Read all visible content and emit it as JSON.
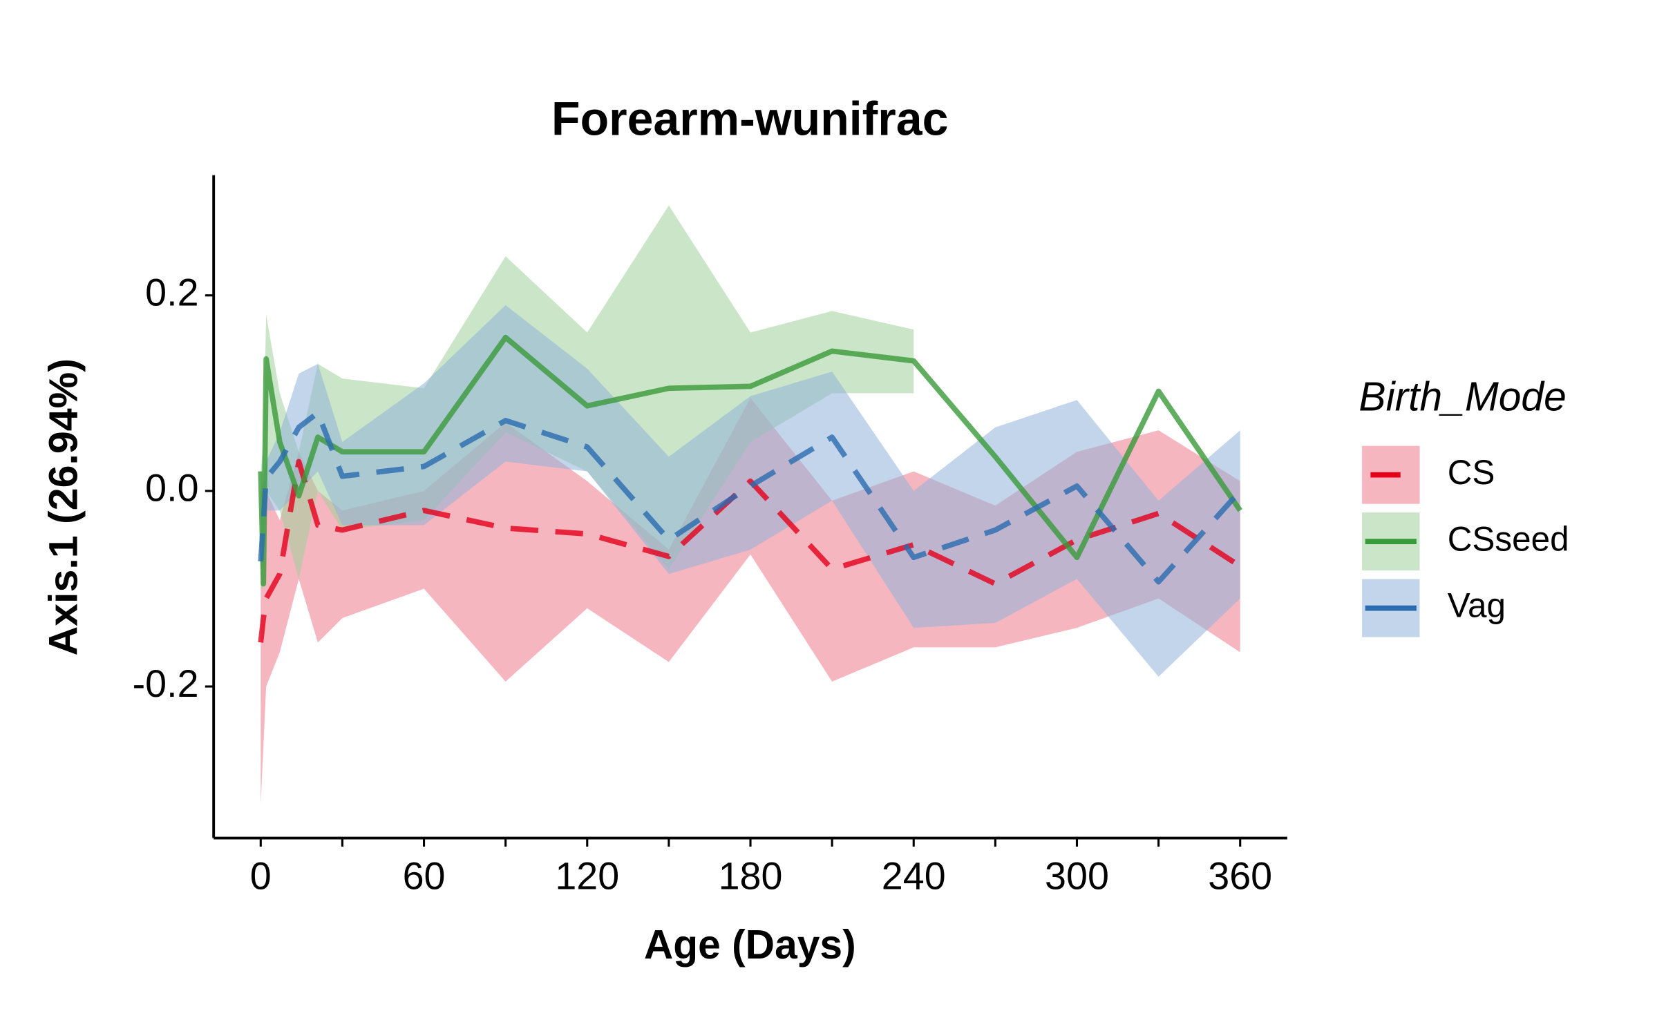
{
  "chart_data": {
    "type": "line-ribbon",
    "title": "Forearm-wunifrac",
    "x_label": "Age (Days)",
    "y_label": "Axis.1 (26.94%)",
    "legend_title": "Birth_Mode",
    "legend_position": "right",
    "x": [
      0,
      1,
      2,
      7,
      14,
      21,
      30,
      60,
      90,
      120,
      150,
      180,
      210,
      240,
      270,
      300,
      330,
      360
    ],
    "xlim": [
      -17.3,
      377.3
    ],
    "ylim": [
      -0.355,
      0.323
    ],
    "xticks": [
      0,
      60,
      120,
      180,
      240,
      300,
      360
    ],
    "xminor_ticks": [
      30,
      90,
      150,
      210,
      270,
      330
    ],
    "yticks": [
      -0.2,
      {
        "value": 0,
        "label": "0.0"
      },
      0.2
    ],
    "series": [
      {
        "name": "CS",
        "color": "#e3001b",
        "fill": "#ee7a8a",
        "dashed": true,
        "values": [
          -0.155,
          -0.13,
          -0.11,
          -0.085,
          0.03,
          -0.035,
          -0.04,
          -0.02,
          -0.038,
          -0.044,
          -0.067,
          0.01,
          -0.08,
          -0.055,
          -0.095,
          -0.05,
          -0.023,
          -0.077
        ],
        "lower": [
          -0.32,
          -0.26,
          -0.2,
          -0.165,
          -0.09,
          -0.155,
          -0.13,
          -0.1,
          -0.195,
          -0.12,
          -0.175,
          -0.065,
          -0.195,
          -0.16,
          -0.16,
          -0.14,
          -0.11,
          -0.165
        ],
        "upper": [
          0.0,
          0.0,
          0.0,
          -0.03,
          0.04,
          0.0,
          -0.02,
          0.0,
          0.07,
          0.01,
          -0.06,
          0.095,
          -0.01,
          0.02,
          -0.015,
          0.04,
          0.062,
          0.01
        ]
      },
      {
        "name": "CSseed",
        "color": "#3a9a3a",
        "fill": "#9fd09a",
        "dashed": false,
        "values": [
          0.02,
          -0.095,
          0.135,
          0.05,
          -0.005,
          0.055,
          0.04,
          0.04,
          0.157,
          0.087,
          0.105,
          0.107,
          0.143,
          0.133,
          0.035,
          -0.068,
          0.102,
          -0.02
        ],
        "lower": [
          -0.1,
          -0.1,
          0.0,
          -0.02,
          -0.09,
          0.0,
          -0.04,
          -0.03,
          0.06,
          0.02,
          -0.08,
          0.05,
          0.1,
          0.1,
          null,
          null,
          null,
          null
        ],
        "upper": [
          0.02,
          0.05,
          0.18,
          0.1,
          0.04,
          0.13,
          0.115,
          0.105,
          0.24,
          0.162,
          0.292,
          0.162,
          0.184,
          0.165,
          null,
          null,
          null,
          null
        ]
      },
      {
        "name": "Vag",
        "color": "#2b6cb0",
        "fill": "#92b2d8",
        "dashed": true,
        "values": [
          -0.072,
          -0.03,
          0.013,
          0.03,
          0.065,
          0.08,
          0.015,
          0.025,
          0.072,
          0.045,
          -0.05,
          0.005,
          0.055,
          -0.068,
          -0.04,
          0.005,
          -0.093,
          0.0
        ],
        "lower": [
          -0.08,
          -0.05,
          -0.02,
          -0.02,
          0.0,
          0.02,
          -0.035,
          -0.035,
          0.03,
          0.02,
          -0.085,
          -0.06,
          -0.01,
          -0.14,
          -0.135,
          -0.09,
          -0.19,
          -0.11
        ],
        "upper": [
          0.0,
          0.01,
          0.03,
          0.06,
          0.12,
          0.13,
          0.05,
          0.11,
          0.19,
          0.125,
          0.035,
          0.097,
          0.122,
          0.0,
          0.065,
          0.093,
          -0.01,
          0.062
        ]
      }
    ]
  }
}
